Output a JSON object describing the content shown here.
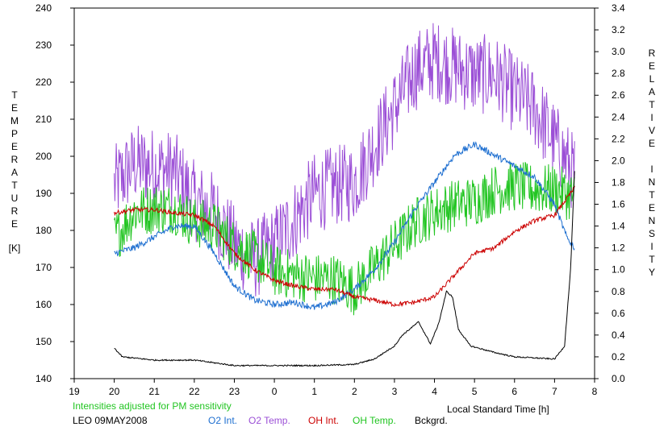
{
  "chart_data": {
    "type": "line",
    "xlabel": "Local Standard Time [h]",
    "ylabel_left": [
      "T",
      "E",
      "M",
      "P",
      "E",
      "R",
      "A",
      "T",
      "U",
      "R",
      "E"
    ],
    "ylabel_left_unit": "[K]",
    "ylabel_right": [
      "R",
      "E",
      "L",
      "A",
      "T",
      "I",
      "V",
      "E",
      "",
      "I",
      "N",
      "T",
      "E",
      "N",
      "S",
      "I",
      "T",
      "Y"
    ],
    "x_ticks": [
      19,
      20,
      21,
      22,
      23,
      0,
      1,
      2,
      3,
      4,
      5,
      6,
      7,
      8
    ],
    "x_tick_labels": [
      "19",
      "20",
      "21",
      "22",
      "23",
      "0",
      "1",
      "2",
      "3",
      "4",
      "5",
      "6",
      "7",
      "8"
    ],
    "y_left_ticks": [
      140,
      150,
      160,
      170,
      180,
      190,
      200,
      210,
      220,
      230,
      240
    ],
    "y_left_tick_labels": [
      "140",
      "150",
      "160",
      "170",
      "180",
      "190",
      "200",
      "210",
      "220",
      "230",
      "240"
    ],
    "ylim_left": [
      140,
      240
    ],
    "y_right_ticks": [
      0.0,
      0.2,
      0.4,
      0.6,
      0.8,
      1.0,
      1.2,
      1.4,
      1.6,
      1.8,
      2.0,
      2.2,
      2.4,
      2.6,
      2.8,
      3.0,
      3.2,
      3.4
    ],
    "y_right_tick_labels": [
      "0.0",
      "0.2",
      "0.4",
      "0.6",
      "0.8",
      "1.0",
      "1.2",
      "1.4",
      "1.6",
      "1.8",
      "2.0",
      "2.2",
      "2.4",
      "2.6",
      "2.8",
      "3.0",
      "3.2",
      "3.4"
    ],
    "ylim_right": [
      0,
      3.4
    ],
    "series": [
      {
        "name": "O2 Temp.",
        "color": "#9b4fd6",
        "axis": "left",
        "noise": 11,
        "x": [
          20,
          20.5,
          21,
          21.5,
          22,
          22.5,
          23,
          23.5,
          24,
          24.5,
          25,
          25.5,
          26,
          26.5,
          27,
          27.5,
          28,
          28.5,
          29,
          29.5,
          30,
          30.5,
          31,
          31.5
        ],
        "y": [
          192,
          198,
          197,
          196,
          188,
          185,
          176,
          172,
          176,
          183,
          190,
          192,
          193,
          203,
          213,
          223,
          226,
          224,
          222,
          222,
          217,
          213,
          204,
          195
        ]
      },
      {
        "name": "O2 Int.",
        "color": "#1e6fd0",
        "axis": "right",
        "noise": 0.03,
        "x": [
          20,
          20.5,
          21,
          21.5,
          22,
          22.5,
          23,
          23.5,
          24,
          24.5,
          25,
          25.5,
          26,
          26.5,
          27,
          27.5,
          28,
          28.5,
          29,
          29.5,
          30,
          30.5,
          31,
          31.3,
          31.5
        ],
        "y": [
          1.15,
          1.2,
          1.3,
          1.4,
          1.4,
          1.15,
          0.85,
          0.72,
          0.68,
          0.7,
          0.65,
          0.7,
          0.82,
          1.0,
          1.25,
          1.55,
          1.8,
          2.05,
          2.15,
          2.05,
          1.95,
          1.85,
          1.6,
          1.3,
          1.2
        ]
      },
      {
        "name": "OH Temp.",
        "color": "#22c522",
        "axis": "left",
        "noise": 7,
        "x": [
          20,
          20.5,
          21,
          21.5,
          22,
          22.5,
          23,
          23.5,
          24,
          24.5,
          25,
          25.5,
          26,
          26.5,
          27,
          27.5,
          28,
          28.5,
          29,
          29.5,
          30,
          30.5,
          31,
          31.5
        ],
        "y": [
          178,
          185,
          186,
          186,
          182,
          181,
          176,
          173,
          169,
          168,
          167,
          167,
          164,
          170,
          176,
          182,
          185,
          187,
          188,
          191,
          192,
          191,
          191,
          189
        ]
      },
      {
        "name": "OH Int.",
        "color": "#cc0000",
        "axis": "right",
        "noise": 0.02,
        "x": [
          20,
          20.5,
          21,
          21.5,
          22,
          22.5,
          23,
          23.5,
          24,
          24.5,
          25,
          25.5,
          26,
          26.5,
          27,
          27.5,
          28,
          28.5,
          29,
          29.5,
          30,
          30.5,
          31,
          31.5
        ],
        "y": [
          1.52,
          1.55,
          1.55,
          1.52,
          1.5,
          1.4,
          1.15,
          1.0,
          0.9,
          0.85,
          0.82,
          0.82,
          0.75,
          0.72,
          0.68,
          0.7,
          0.75,
          0.95,
          1.15,
          1.2,
          1.35,
          1.45,
          1.5,
          1.75
        ]
      },
      {
        "name": "Bckgrd.",
        "color": "#000000",
        "axis": "right",
        "noise": 0.006,
        "x": [
          20,
          20.2,
          21,
          22,
          23,
          24,
          25,
          26,
          26.5,
          27,
          27.2,
          27.6,
          27.9,
          28.1,
          28.3,
          28.45,
          28.6,
          28.9,
          29.5,
          30,
          31,
          31.25,
          31.4,
          31.5
        ],
        "y": [
          0.28,
          0.2,
          0.17,
          0.17,
          0.12,
          0.12,
          0.12,
          0.13,
          0.18,
          0.3,
          0.4,
          0.52,
          0.32,
          0.5,
          0.8,
          0.75,
          0.45,
          0.3,
          0.24,
          0.2,
          0.18,
          0.3,
          1.0,
          1.9
        ]
      }
    ]
  },
  "footer": {
    "note": "Intensities adjusted for PM sensitivity",
    "station": "LEO 09MAY2008",
    "legend": [
      {
        "label": "O2 Int.",
        "color": "#1e6fd0"
      },
      {
        "label": "O2 Temp.",
        "color": "#9b4fd6"
      },
      {
        "label": "OH Int.",
        "color": "#cc0000"
      },
      {
        "label": "OH Temp.",
        "color": "#22c522"
      },
      {
        "label": "Bckgrd.",
        "color": "#000000"
      }
    ]
  }
}
